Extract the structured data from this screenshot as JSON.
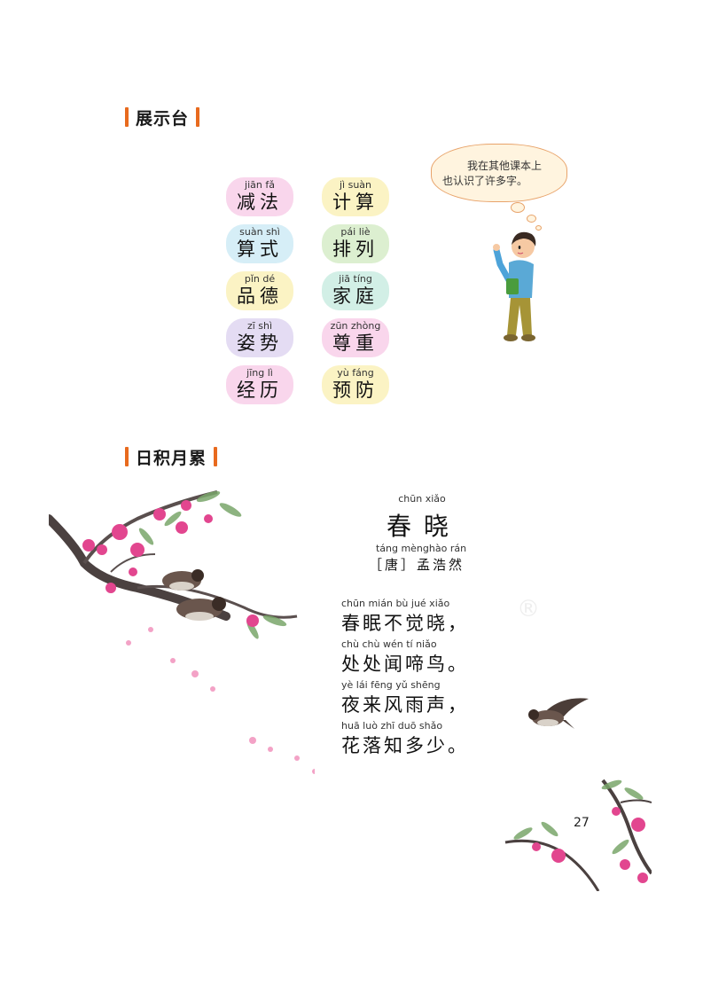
{
  "section1": {
    "title": "展示台"
  },
  "words": [
    {
      "pinyin": "jiān fǎ",
      "hanzi": "减法",
      "color": "#f9d6ec"
    },
    {
      "pinyin": "jì suàn",
      "hanzi": "计算",
      "color": "#fbf3c4"
    },
    {
      "pinyin": "suàn shì",
      "hanzi": "算式",
      "color": "#d6eef7"
    },
    {
      "pinyin": "pái liè",
      "hanzi": "排列",
      "color": "#dcefd0"
    },
    {
      "pinyin": "pǐn dé",
      "hanzi": "品德",
      "color": "#fbf3c4"
    },
    {
      "pinyin": "jiā tíng",
      "hanzi": "家庭",
      "color": "#d2efe6"
    },
    {
      "pinyin": "zī shì",
      "hanzi": "姿势",
      "color": "#e4dcf3"
    },
    {
      "pinyin": "zūn zhòng",
      "hanzi": "尊重",
      "color": "#f9d6ec"
    },
    {
      "pinyin": "jīng lì",
      "hanzi": "经历",
      "color": "#f9d6ec"
    },
    {
      "pinyin": "yù fáng",
      "hanzi": "预防",
      "color": "#fbf3c4"
    }
  ],
  "bubble": {
    "line1": "我在其他课本上",
    "line2": "也认识了许多字。"
  },
  "section2": {
    "title": "日积月累"
  },
  "poem": {
    "title_pinyin": "chūn xiǎo",
    "title": "春晓",
    "author_pinyin": "táng mènghào rán",
    "author": "［唐］孟浩然",
    "lines": [
      {
        "pinyin": "chūn mián bù jué xiǎo",
        "text": "春眠不觉晓，"
      },
      {
        "pinyin": "chù chù wén tí niǎo",
        "text": "处处闻啼鸟。"
      },
      {
        "pinyin": "yè lái fēng yǔ shēng",
        "text": "夜来风雨声，"
      },
      {
        "pinyin": "huā luò zhī duō shǎo",
        "text": "花落知多少。"
      }
    ]
  },
  "watermark": "®",
  "page_number": "27",
  "colors": {
    "accent": "#e86a1e",
    "blossom": "#e2468f",
    "bubble_border": "#e8a36a"
  },
  "illustrations": [
    "plum-blossom-branch",
    "sparrows",
    "boy-pointing",
    "flying-sparrow"
  ]
}
